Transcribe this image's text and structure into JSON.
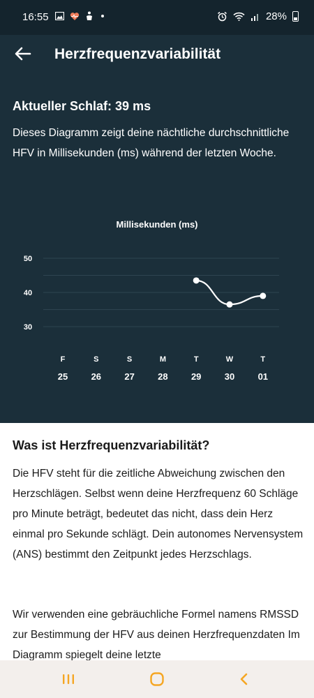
{
  "status_bar": {
    "time": "16:55",
    "battery": "28%",
    "left_icons": [
      "gallery-icon",
      "heart-rate-icon",
      "fitness-icon",
      "dot-icon"
    ],
    "right_icons": [
      "alarm-icon",
      "wifi-icon",
      "signal-icon",
      "battery-icon"
    ]
  },
  "app_bar": {
    "title": "Herzfrequenzvariabilität"
  },
  "hero": {
    "headline": "Aktueller Schlaf: 39 ms",
    "description": "Dieses Diagramm zeigt deine nächtliche durchschnittliche HFV in Millisekunden (ms) während der letzten Woche."
  },
  "chart_data": {
    "type": "line",
    "title": "Millisekunden (ms)",
    "day_letters": [
      "F",
      "S",
      "S",
      "M",
      "T",
      "W",
      "T"
    ],
    "day_numbers": [
      "25",
      "26",
      "27",
      "28",
      "29",
      "30",
      "01"
    ],
    "yticks": [
      50,
      40,
      30
    ],
    "ylim": [
      30,
      50
    ],
    "series": [
      {
        "values": [
          null,
          null,
          null,
          null,
          43.5,
          36.5,
          39
        ]
      }
    ]
  },
  "article": {
    "heading": "Was ist Herzfrequenzvariabilität?",
    "paragraph1": "Die HFV steht für die zeitliche Abweichung zwischen den Herzschlägen. Selbst wenn deine Herzfrequenz 60 Schläge pro Minute beträgt, bedeutet das nicht, dass dein Herz einmal pro Sekunde schlägt. Dein autonomes Nervensystem (ANS) bestimmt den Zeitpunkt jedes Herzschlags.",
    "paragraph2": "Wir verwenden eine gebräuchliche Formel namens RMSSD zur Bestimmung der HFV aus deinen Herzfrequenzdaten Im Diagramm spiegelt deine letzte"
  },
  "nav": {
    "accent": "#f5a623"
  }
}
